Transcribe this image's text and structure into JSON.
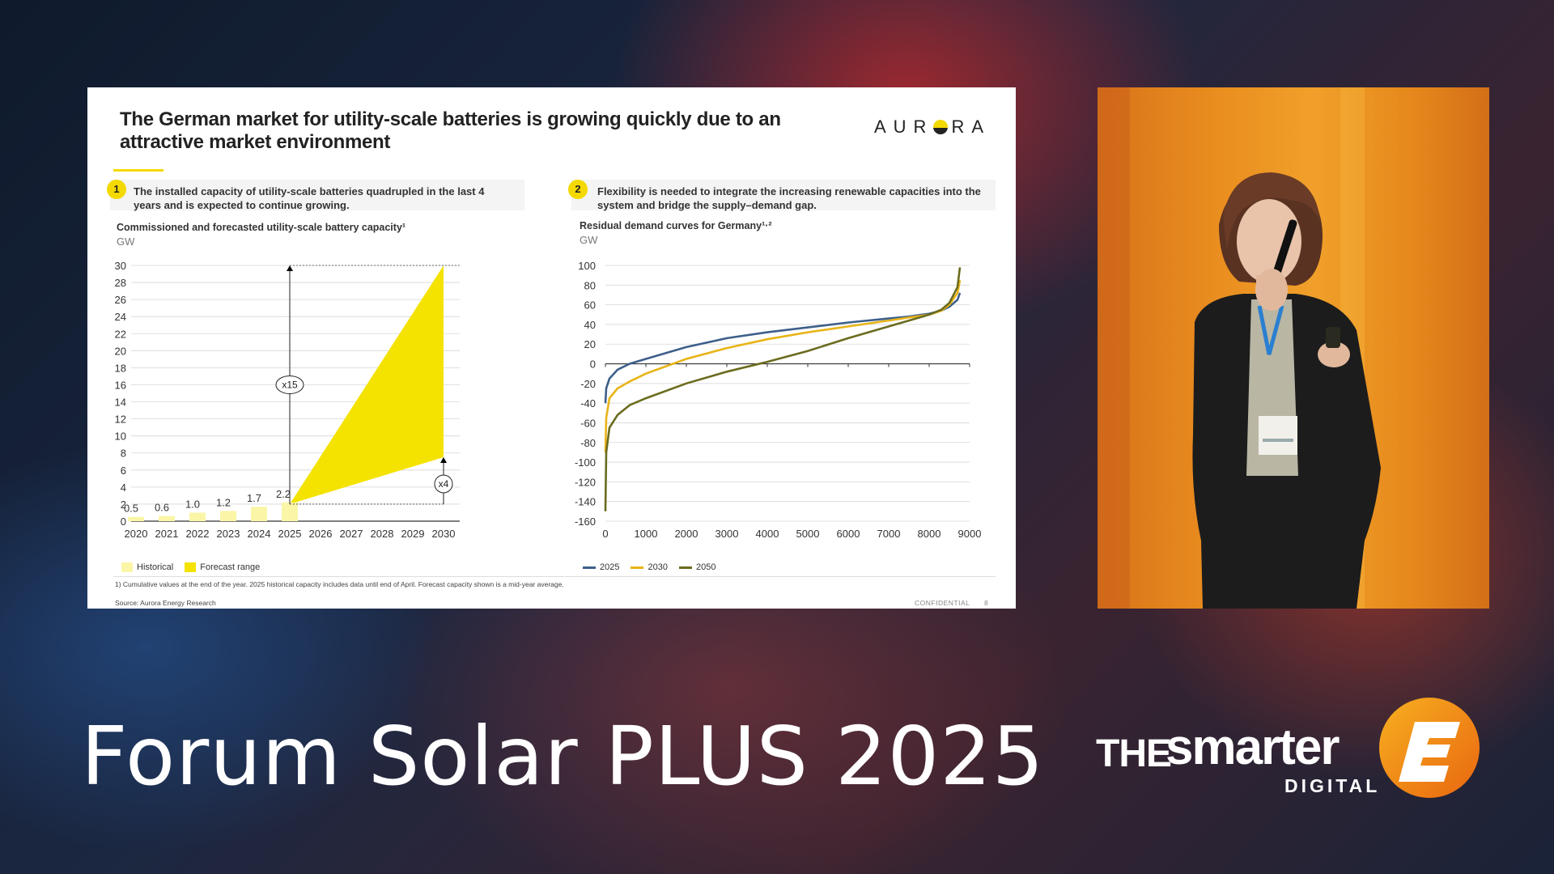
{
  "slide": {
    "title": "The German market for utility-scale batteries is growing quickly due to an attractive market environment",
    "logo": {
      "before": "AUR",
      "after": "RA"
    },
    "panel1": {
      "number": "1",
      "text": "The installed capacity of utility-scale batteries quadrupled in the last 4 years and is expected to continue growing."
    },
    "panel2": {
      "number": "2",
      "text": "Flexibility is needed to integrate the increasing renewable capacities into the system and bridge the supply–demand gap."
    },
    "footnote": "1) Cumulative values at the end of the year. 2025 historical capacity includes data until end of April. Forecast capacity shown is a mid-year average.",
    "source": "Source: Aurora Energy Research",
    "confidential": "CONFIDENTIAL",
    "page_number": "8"
  },
  "chart_data": [
    {
      "type": "bar",
      "title": "Commissioned and forecasted utility-scale battery capacity¹",
      "ylabel": "GW",
      "categories": [
        "2020",
        "2021",
        "2022",
        "2023",
        "2024",
        "2025",
        "2026",
        "2027",
        "2028",
        "2029",
        "2030"
      ],
      "series": [
        {
          "name": "Historical",
          "values": [
            0.5,
            0.6,
            1.0,
            1.2,
            1.7,
            2.2,
            null,
            null,
            null,
            null,
            null
          ]
        }
      ],
      "data_labels": [
        "0.5",
        "0.6",
        "1.0",
        "1.2",
        "1.7",
        "2.2"
      ],
      "forecast_range": {
        "name": "Forecast range",
        "start": {
          "x": "2025",
          "y": 2.0
        },
        "end_high": {
          "x": "2030",
          "y": 30
        },
        "end_low": {
          "x": "2030",
          "y": 7.5
        }
      },
      "annotations": [
        "x15",
        "x4"
      ],
      "yticks": [
        "0",
        "2",
        "4",
        "6",
        "8",
        "10",
        "12",
        "14",
        "16",
        "18",
        "20",
        "22",
        "24",
        "26",
        "28",
        "30"
      ],
      "ylim": [
        0,
        30
      ],
      "grid": true,
      "legend": "bottom-left",
      "colors": {
        "historical": "#fbf5a8",
        "forecast": "#f4e300"
      }
    },
    {
      "type": "line",
      "title": "Residual demand curves for Germany¹·²",
      "ylabel": "GW",
      "xticks": [
        "0",
        "1000",
        "2000",
        "3000",
        "4000",
        "5000",
        "6000",
        "7000",
        "8000",
        "9000"
      ],
      "yticks": [
        "100",
        "80",
        "60",
        "40",
        "20",
        "0",
        "-20",
        "-40",
        "-60",
        "-80",
        "-100",
        "-120",
        "-140",
        "-160"
      ],
      "xlim": [
        0,
        9000
      ],
      "ylim": [
        -160,
        100
      ],
      "grid": true,
      "legend": "bottom-left",
      "series": [
        {
          "name": "2025",
          "color": "#3e5f8a",
          "x": [
            0,
            20,
            100,
            300,
            600,
            1000,
            2000,
            3000,
            4000,
            5000,
            6000,
            7000,
            7500,
            8000,
            8300,
            8500,
            8700,
            8760
          ],
          "y": [
            -40,
            -25,
            -15,
            -6,
            0,
            5,
            17,
            26,
            32,
            37,
            42,
            46,
            48,
            51,
            54,
            58,
            65,
            72
          ]
        },
        {
          "name": "2030",
          "color": "#e8b417",
          "x": [
            0,
            20,
            100,
            300,
            600,
            1000,
            2000,
            3000,
            4000,
            5000,
            6000,
            7000,
            7500,
            8000,
            8300,
            8500,
            8700,
            8760
          ],
          "y": [
            -90,
            -55,
            -35,
            -25,
            -18,
            -10,
            5,
            16,
            25,
            32,
            38,
            44,
            47,
            50,
            54,
            60,
            72,
            85
          ]
        },
        {
          "name": "2050",
          "color": "#6b6b1f",
          "x": [
            0,
            20,
            100,
            300,
            600,
            1000,
            2000,
            3000,
            4000,
            5000,
            6000,
            7000,
            7500,
            8000,
            8300,
            8500,
            8700,
            8760
          ],
          "y": [
            -150,
            -90,
            -65,
            -52,
            -42,
            -35,
            -20,
            -8,
            2,
            13,
            26,
            38,
            44,
            50,
            55,
            62,
            78,
            98
          ]
        }
      ]
    }
  ],
  "speaker_panel": {
    "label": "speaker video"
  },
  "event": {
    "title": "Forum Solar PLUS 2025"
  },
  "brand": {
    "the": "THE",
    "smarter": "smarter",
    "digital": "DIGITAL",
    "colors": {
      "mark": "#f08a14",
      "text": "#ffffff"
    }
  }
}
